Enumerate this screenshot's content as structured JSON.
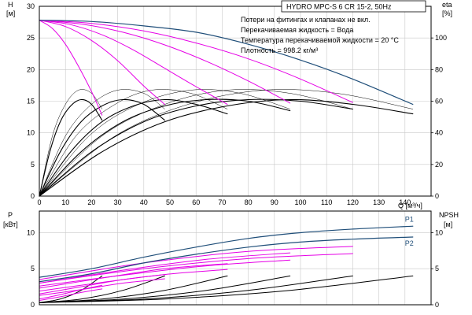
{
  "header": {
    "model_label": "HYDRO MPC-S 6 CR 15-2, 50Hz",
    "notes": [
      "Потери на фитингах и клапанах не вкл.",
      "Перекачиваемая жидкость = Вода",
      "Температура перекачиваемой жидкости = 20 °C",
      "Плотность = 998.2 кг/м³"
    ]
  },
  "colors": {
    "envelope": "#1f4e79",
    "pump_curves": "#e600e6",
    "efficiency_thin": "#000000",
    "efficiency_thick": "#000000",
    "grid": "#c8c8c8"
  },
  "chart_data": [
    {
      "id": "head",
      "type": "line",
      "x_label": "Q [м³/ч]",
      "y_label_left": [
        "H",
        "[м]"
      ],
      "y_label_right": [
        "eta",
        "[%]"
      ],
      "xlim": [
        0,
        150
      ],
      "ylim_left": [
        0,
        30
      ],
      "ylim_right": [
        0,
        120
      ],
      "x_ticks": [
        0,
        10,
        20,
        30,
        40,
        50,
        60,
        70,
        80,
        90,
        100,
        110,
        120,
        130,
        140
      ],
      "y_ticks_left": [
        0,
        5,
        10,
        15,
        20,
        25,
        30
      ],
      "y_ticks_right": [
        0,
        20,
        40,
        60,
        80,
        100
      ],
      "grid": true,
      "series": [
        {
          "kind": "envelope",
          "x": [
            0,
            20,
            40,
            60,
            80,
            100,
            120,
            143
          ],
          "y": [
            27.8,
            27.6,
            26.9,
            25.9,
            24.0,
            21.5,
            18.5,
            14.5
          ]
        },
        {
          "kind": "pump",
          "x": [
            0,
            5,
            10,
            15,
            20,
            24
          ],
          "y": [
            27.8,
            26.5,
            24.0,
            20.5,
            16.5,
            12.8
          ]
        },
        {
          "kind": "pump",
          "x": [
            0,
            10,
            20,
            30,
            40,
            48
          ],
          "y": [
            27.8,
            26.8,
            24.6,
            21.4,
            17.4,
            14.5
          ]
        },
        {
          "kind": "pump",
          "x": [
            0,
            12,
            24,
            36,
            48,
            60,
            72
          ],
          "y": [
            27.8,
            27.1,
            25.5,
            23.1,
            20.2,
            17.3,
            14.5
          ]
        },
        {
          "kind": "pump",
          "x": [
            0,
            16,
            32,
            48,
            64,
            80,
            96
          ],
          "y": [
            27.8,
            27.2,
            25.9,
            23.9,
            21.3,
            18.2,
            14.7
          ]
        },
        {
          "kind": "pump",
          "x": [
            0,
            20,
            40,
            60,
            80,
            100,
            120
          ],
          "y": [
            27.8,
            27.3,
            26.1,
            24.2,
            21.7,
            18.5,
            14.8
          ]
        },
        {
          "kind": "eta_thin",
          "x": [
            0,
            5,
            10,
            15,
            20,
            24
          ],
          "y": [
            0,
            38,
            58,
            67,
            65,
            55
          ]
        },
        {
          "kind": "eta_thin",
          "x": [
            0,
            10,
            20,
            30,
            40,
            48
          ],
          "y": [
            0,
            38,
            58,
            67,
            65,
            55
          ]
        },
        {
          "kind": "eta_thin",
          "x": [
            0,
            14,
            29,
            43,
            58,
            72
          ],
          "y": [
            0,
            38,
            58,
            67,
            65,
            55
          ]
        },
        {
          "kind": "eta_thin",
          "x": [
            0,
            19,
            38,
            58,
            77,
            96
          ],
          "y": [
            0,
            38,
            58,
            67,
            65,
            55
          ]
        },
        {
          "kind": "eta_thin",
          "x": [
            0,
            24,
            48,
            72,
            96,
            120
          ],
          "y": [
            0,
            38,
            58,
            67,
            65,
            55
          ]
        },
        {
          "kind": "eta_thin",
          "x": [
            0,
            29,
            57,
            86,
            114,
            143
          ],
          "y": [
            0,
            38,
            58,
            67,
            65,
            55
          ]
        },
        {
          "kind": "eta_thick",
          "x": [
            0,
            4,
            8,
            12,
            16,
            20,
            24
          ],
          "y": [
            0,
            28,
            47,
            57,
            61,
            58,
            48
          ]
        },
        {
          "kind": "eta_thick",
          "x": [
            0,
            8,
            16,
            24,
            32,
            40,
            48
          ],
          "y": [
            0,
            28,
            47,
            57,
            61,
            58,
            48
          ]
        },
        {
          "kind": "eta_thick",
          "x": [
            0,
            12,
            24,
            36,
            48,
            60,
            72
          ],
          "y": [
            0,
            28,
            47,
            57,
            61,
            58,
            52
          ]
        },
        {
          "kind": "eta_thick",
          "x": [
            0,
            16,
            32,
            48,
            64,
            80,
            96
          ],
          "y": [
            0,
            28,
            47,
            57,
            61,
            60,
            54
          ]
        },
        {
          "kind": "eta_thick",
          "x": [
            0,
            20,
            40,
            60,
            80,
            100,
            120
          ],
          "y": [
            0,
            28,
            47,
            57,
            61,
            60,
            55
          ]
        },
        {
          "kind": "eta_thick",
          "x": [
            0,
            24,
            48,
            72,
            96,
            120,
            143
          ],
          "y": [
            0,
            28,
            47,
            57,
            61,
            58,
            52
          ]
        }
      ]
    },
    {
      "id": "power",
      "type": "line",
      "y_label_left": [
        "P",
        "[кВт]"
      ],
      "y_label_right": [
        "NPSH",
        "[м]"
      ],
      "xlim": [
        0,
        150
      ],
      "ylim_left": [
        0,
        13
      ],
      "ylim_right": [
        0,
        13
      ],
      "x_ticks": [
        0,
        10,
        20,
        30,
        40,
        50,
        60,
        70,
        80,
        90,
        100,
        110,
        120,
        130,
        140
      ],
      "y_ticks_left": [
        0,
        5,
        10
      ],
      "y_ticks_right": [
        0,
        5,
        10
      ],
      "grid": true,
      "labels": [
        {
          "text": "P1",
          "x": 140,
          "y": 11.5
        },
        {
          "text": "P2",
          "x": 140,
          "y": 8.2
        }
      ],
      "series": [
        {
          "kind": "envelope",
          "x": [
            0,
            20,
            40,
            60,
            80,
            100,
            120,
            143
          ],
          "y": [
            3.8,
            5.0,
            6.6,
            8.0,
            9.2,
            10.0,
            10.5,
            10.9
          ]
        },
        {
          "kind": "envelope",
          "x": [
            0,
            20,
            40,
            60,
            80,
            100,
            120,
            143
          ],
          "y": [
            3.2,
            4.3,
            5.8,
            7.0,
            8.0,
            8.7,
            9.1,
            9.4
          ]
        },
        {
          "kind": "pump",
          "x": [
            0,
            8,
            16,
            24
          ],
          "y": [
            0.8,
            1.4,
            2.1,
            2.7
          ]
        },
        {
          "kind": "pump",
          "x": [
            0,
            8,
            16,
            24
          ],
          "y": [
            0.6,
            1.1,
            1.7,
            2.2
          ]
        },
        {
          "kind": "pump",
          "x": [
            0,
            16,
            32,
            48
          ],
          "y": [
            1.5,
            2.5,
            3.5,
            4.2
          ]
        },
        {
          "kind": "pump",
          "x": [
            0,
            16,
            32,
            48
          ],
          "y": [
            1.3,
            2.1,
            3.0,
            3.6
          ]
        },
        {
          "kind": "pump",
          "x": [
            0,
            24,
            48,
            72
          ],
          "y": [
            2.3,
            3.7,
            5.0,
            5.7
          ]
        },
        {
          "kind": "pump",
          "x": [
            0,
            24,
            48,
            72
          ],
          "y": [
            1.9,
            3.1,
            4.2,
            4.9
          ]
        },
        {
          "kind": "pump",
          "x": [
            0,
            32,
            64,
            96
          ],
          "y": [
            3.0,
            4.8,
            6.3,
            7.2
          ]
        },
        {
          "kind": "pump",
          "x": [
            0,
            32,
            64,
            96
          ],
          "y": [
            2.6,
            4.1,
            5.4,
            6.2
          ]
        },
        {
          "kind": "pump",
          "x": [
            0,
            40,
            80,
            120
          ],
          "y": [
            3.5,
            5.8,
            7.4,
            8.1
          ]
        },
        {
          "kind": "pump",
          "x": [
            0,
            40,
            80,
            120
          ],
          "y": [
            3.0,
            5.0,
            6.4,
            7.1
          ]
        },
        {
          "kind": "npsh",
          "x": [
            0,
            8,
            16,
            24
          ],
          "y": [
            0.3,
            0.8,
            2.0,
            4.0
          ]
        },
        {
          "kind": "npsh",
          "x": [
            0,
            16,
            32,
            48
          ],
          "y": [
            0.3,
            0.8,
            2.0,
            4.0
          ]
        },
        {
          "kind": "npsh",
          "x": [
            0,
            24,
            48,
            72
          ],
          "y": [
            0.3,
            0.8,
            2.0,
            4.0
          ]
        },
        {
          "kind": "npsh",
          "x": [
            0,
            32,
            64,
            96
          ],
          "y": [
            0.3,
            0.8,
            2.0,
            4.0
          ]
        },
        {
          "kind": "npsh",
          "x": [
            0,
            40,
            80,
            120
          ],
          "y": [
            0.3,
            0.8,
            2.0,
            4.0
          ]
        },
        {
          "kind": "npsh",
          "x": [
            0,
            48,
            96,
            143
          ],
          "y": [
            0.3,
            0.8,
            2.0,
            4.0
          ]
        }
      ]
    }
  ]
}
